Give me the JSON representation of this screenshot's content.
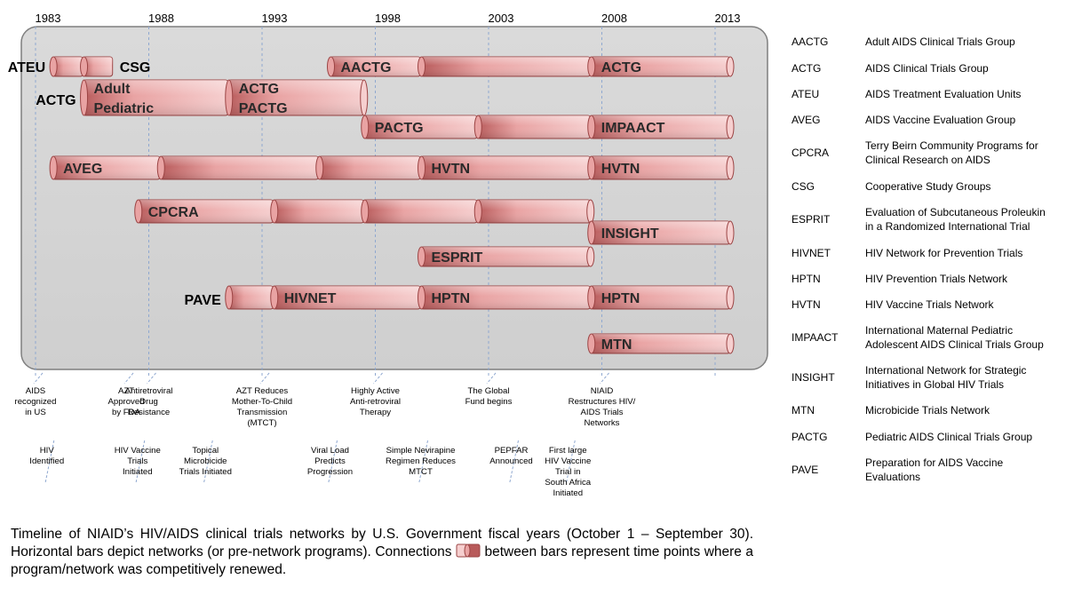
{
  "years": [
    "1983",
    "1988",
    "1993",
    "1998",
    "2003",
    "2008",
    "2013"
  ],
  "colors": {
    "panel_fill": "#d4d4d4",
    "panel_stroke": "#7f7f7f",
    "bar_light": "#f6cfcf",
    "bar_mid": "#e9a3a3",
    "bar_dark": "#b85a5a",
    "bar_stroke": "#9b4444",
    "guide_line": "#8fa8d0"
  },
  "rows": [
    {
      "side_label": "",
      "segments": [
        {
          "start": 1983.75,
          "end": 1985.1,
          "label": "ATEU",
          "label_pos": "left"
        },
        {
          "start": 1985.1,
          "end": 1986.4,
          "label": "CSG",
          "label_pos": "right"
        },
        {
          "start": 1996.0,
          "end": 2000.0,
          "label": "AACTG"
        },
        {
          "start": 2000.0,
          "end": 2007.5,
          "label": ""
        },
        {
          "start": 2007.5,
          "end": 2017.5,
          "label": "ACTG"
        }
      ]
    },
    {
      "side_label": "ACTG",
      "segments": [
        {
          "start": 1985.1,
          "end": 1991.5,
          "label": "Adult",
          "label2": "Pediatric"
        },
        {
          "start": 1991.5,
          "end": 1997.5,
          "label": "ACTG",
          "label2": "PACTG"
        }
      ]
    },
    {
      "side_label": "",
      "segments": [
        {
          "start": 1997.5,
          "end": 2002.5,
          "label": "PACTG"
        },
        {
          "start": 2002.5,
          "end": 2007.5,
          "label": ""
        },
        {
          "start": 2007.5,
          "end": 2017.5,
          "label": "IMPAACT"
        }
      ]
    },
    {
      "side_label": "",
      "segments": [
        {
          "start": 1983.75,
          "end": 1988.5,
          "label": "AVEG"
        },
        {
          "start": 1988.5,
          "end": 1995.5,
          "label": ""
        },
        {
          "start": 1995.5,
          "end": 2000.0,
          "label": ""
        },
        {
          "start": 2000.0,
          "end": 2007.5,
          "label": "HVTN"
        },
        {
          "start": 2007.5,
          "end": 2017.5,
          "label": "HVTN"
        }
      ]
    },
    {
      "side_label": "",
      "segments": [
        {
          "start": 1987.5,
          "end": 1993.5,
          "label": "CPCRA"
        },
        {
          "start": 1993.5,
          "end": 1997.5,
          "label": ""
        },
        {
          "start": 1997.5,
          "end": 2002.5,
          "label": ""
        },
        {
          "start": 2002.5,
          "end": 2007.5,
          "label": ""
        }
      ]
    },
    {
      "side_label": "",
      "segments": [
        {
          "start": 2007.5,
          "end": 2017.5,
          "label": "INSIGHT"
        }
      ]
    },
    {
      "side_label": "",
      "segments": [
        {
          "start": 2000.0,
          "end": 2007.5,
          "label": "ESPRIT"
        }
      ]
    },
    {
      "side_label": "PAVE",
      "segments": [
        {
          "start": 1991.5,
          "end": 1993.5,
          "label": ""
        },
        {
          "start": 1993.5,
          "end": 2000.0,
          "label": "HIVNET"
        },
        {
          "start": 2000.0,
          "end": 2007.5,
          "label": "HPTN"
        },
        {
          "start": 2007.5,
          "end": 2017.5,
          "label": "HPTN"
        }
      ]
    },
    {
      "side_label": "",
      "segments": [
        {
          "start": 2007.5,
          "end": 2017.5,
          "label": "MTN"
        }
      ]
    }
  ],
  "events": [
    {
      "year": 1983.0,
      "tier": "upper",
      "lines": [
        "AIDS",
        "recognized",
        "in US"
      ]
    },
    {
      "year": 1987.0,
      "tier": "upper",
      "lines": [
        "AZT",
        "Approved",
        "by FDA"
      ]
    },
    {
      "year": 1988.0,
      "tier": "upper",
      "lines": [
        "Antiretroviral",
        "Drug",
        "Resistance"
      ]
    },
    {
      "year": 1993.0,
      "tier": "upper",
      "lines": [
        "AZT Reduces",
        "Mother-To-Child",
        "Transmission",
        "(MTCT)"
      ]
    },
    {
      "year": 1998.0,
      "tier": "upper",
      "lines": [
        "Highly Active",
        "Anti-retroviral",
        "Therapy"
      ]
    },
    {
      "year": 2003.0,
      "tier": "upper",
      "lines": [
        "The Global",
        "Fund begins"
      ]
    },
    {
      "year": 2008.0,
      "tier": "upper",
      "lines": [
        "NIAID",
        "Restructures HIV/",
        "AIDS Trials",
        "Networks"
      ]
    },
    {
      "year": 1983.5,
      "tier": "lower",
      "lines": [
        "HIV",
        "Identified"
      ]
    },
    {
      "year": 1987.5,
      "tier": "lower",
      "lines": [
        "HIV Vaccine",
        "Trials",
        "Initiated"
      ]
    },
    {
      "year": 1990.5,
      "tier": "lower",
      "lines": [
        "Topical",
        "Microbicide",
        "Trials Initiated"
      ]
    },
    {
      "year": 1996.0,
      "tier": "lower",
      "lines": [
        "Viral Load",
        "Predicts",
        "Progression"
      ]
    },
    {
      "year": 2000.0,
      "tier": "lower",
      "lines": [
        "Simple Nevirapine",
        "Regimen Reduces",
        "MTCT"
      ]
    },
    {
      "year": 2004.0,
      "tier": "lower",
      "lines": [
        "PEPFAR",
        "Announced"
      ]
    },
    {
      "year": 2006.5,
      "tier": "lower",
      "lines": [
        "First large",
        "HIV Vaccine",
        "Trial in",
        "South Africa",
        "Initiated"
      ]
    }
  ],
  "legend": [
    {
      "abbr": "AACTG",
      "desc": [
        "Adult AIDS Clinical Trials Group"
      ]
    },
    {
      "abbr": "ACTG",
      "desc": [
        "AIDS Clinical Trials Group"
      ]
    },
    {
      "abbr": "ATEU",
      "desc": [
        "AIDS Treatment Evaluation Units"
      ]
    },
    {
      "abbr": "AVEG",
      "desc": [
        "AIDS Vaccine Evaluation Group"
      ]
    },
    {
      "abbr": "CPCRA",
      "desc": [
        "Terry Beirn Community Programs for",
        "Clinical Research on AIDS"
      ]
    },
    {
      "abbr": "CSG",
      "desc": [
        "Cooperative Study Groups"
      ]
    },
    {
      "abbr": "ESPRIT",
      "desc": [
        "Evaluation of Subcutaneous Proleukin",
        "in a Randomized International Trial"
      ]
    },
    {
      "abbr": "HIVNET",
      "desc": [
        "HIV Network for Prevention Trials"
      ]
    },
    {
      "abbr": "HPTN",
      "desc": [
        "HIV Prevention Trials Network"
      ]
    },
    {
      "abbr": "HVTN",
      "desc": [
        "HIV Vaccine Trials Network"
      ]
    },
    {
      "abbr": "IMPAACT",
      "desc": [
        "International Maternal Pediatric",
        "Adolescent AIDS Clinical Trials Group"
      ]
    },
    {
      "abbr": "INSIGHT",
      "desc": [
        "International Network for Strategic",
        "Initiatives in Global HIV Trials"
      ]
    },
    {
      "abbr": "MTN",
      "desc": [
        "Microbicide Trials Network"
      ]
    },
    {
      "abbr": "PACTG",
      "desc": [
        "Pediatric AIDS Clinical Trials Group"
      ]
    },
    {
      "abbr": "PAVE",
      "desc": [
        "Preparation for AIDS Vaccine",
        "Evaluations"
      ]
    }
  ],
  "caption": {
    "before": "Timeline of NIAID’s HIV/AIDS clinical trials networks by U.S. Government fiscal years (October 1 – September 30).  Horizontal bars depict networks (or pre-network programs). Connections",
    "after": "between bars represent time points where a program/network was competitively renewed."
  }
}
